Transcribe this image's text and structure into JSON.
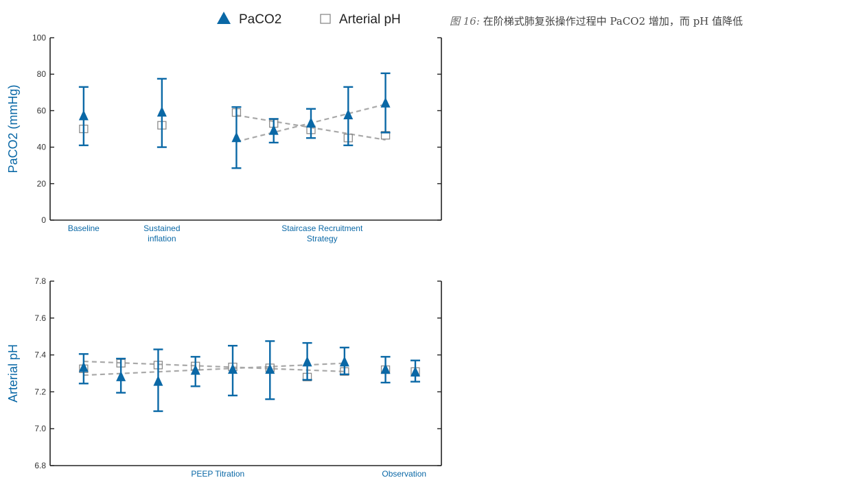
{
  "caption": {
    "prefix": "图  16:",
    "text": "在阶梯式肺复张操作过程中 PaCO2 增加，而 pH 值降低"
  },
  "legend": {
    "paco2": "PaCO2",
    "ph": "Arterial pH"
  },
  "colors": {
    "accent": "#0a68a6",
    "dashed": "#a8a8a8",
    "square": "#8a8a8a",
    "axis": "#222222"
  },
  "chart_data": [
    {
      "type": "scatter",
      "name": "paco2-chart",
      "ylabel": "PaCO2 (mmHg)",
      "ylim": [
        0,
        100
      ],
      "yticks": [
        0,
        20,
        40,
        60,
        80,
        100
      ],
      "xlim": [
        0,
        10.5
      ],
      "group_labels": [
        {
          "text": [
            "Baseline"
          ],
          "x": 0.9
        },
        {
          "text": [
            "Sustained",
            "inflation"
          ],
          "x": 3.0
        },
        {
          "text": [
            "Staircase Recruitment",
            "Strategy"
          ],
          "x": 7.3
        }
      ],
      "paco2": [
        {
          "x": 0.9,
          "y": 57,
          "lo": 41,
          "hi": 73
        },
        {
          "x": 3.0,
          "y": 59,
          "lo": 40,
          "hi": 77.5
        },
        {
          "x": 5.0,
          "y": 45,
          "lo": 28.5,
          "hi": 62
        },
        {
          "x": 6.0,
          "y": 49,
          "lo": 42.5,
          "hi": 55.5
        },
        {
          "x": 7.0,
          "y": 53,
          "lo": 45,
          "hi": 61
        },
        {
          "x": 8.0,
          "y": 57.5,
          "lo": 41,
          "hi": 73
        },
        {
          "x": 9.0,
          "y": 64,
          "lo": 48,
          "hi": 80.5
        }
      ],
      "ph": [
        {
          "x": 0.9,
          "y": 50
        },
        {
          "x": 3.0,
          "y": 52
        },
        {
          "x": 5.0,
          "y": 59
        },
        {
          "x": 6.0,
          "y": 53
        },
        {
          "x": 7.0,
          "y": 49.5
        },
        {
          "x": 8.0,
          "y": 45
        },
        {
          "x": 9.0,
          "y": 46.5
        }
      ],
      "dashed_paco2": [
        [
          5.0,
          43
        ],
        [
          9.0,
          63.5
        ]
      ],
      "dashed_ph": [
        [
          5.0,
          57.5
        ],
        [
          9.0,
          44
        ]
      ]
    },
    {
      "type": "scatter",
      "name": "ph-chart",
      "ylabel": "Arterial pH",
      "ylim": [
        6.8,
        7.8
      ],
      "yticks": [
        "6.8",
        "7.0",
        "7.2",
        "7.4",
        "7.6",
        "7.8"
      ],
      "xlim": [
        0,
        10.5
      ],
      "group_labels": [
        {
          "text": [
            "PEEP Titration"
          ],
          "x": 4.5
        },
        {
          "text": [
            "Observation"
          ],
          "x": 9.5
        }
      ],
      "paco2": [
        {
          "x": 0.9,
          "y": 7.33,
          "lo": 7.245,
          "hi": 7.405
        },
        {
          "x": 1.9,
          "y": 7.28,
          "lo": 7.195,
          "hi": 7.38
        },
        {
          "x": 2.9,
          "y": 7.255,
          "lo": 7.095,
          "hi": 7.43
        },
        {
          "x": 3.9,
          "y": 7.315,
          "lo": 7.23,
          "hi": 7.39
        },
        {
          "x": 4.9,
          "y": 7.32,
          "lo": 7.18,
          "hi": 7.45
        },
        {
          "x": 5.9,
          "y": 7.32,
          "lo": 7.16,
          "hi": 7.475
        },
        {
          "x": 6.9,
          "y": 7.36,
          "lo": 7.265,
          "hi": 7.465
        },
        {
          "x": 7.9,
          "y": 7.36,
          "lo": 7.295,
          "hi": 7.44
        },
        {
          "x": 9.0,
          "y": 7.32,
          "lo": 7.25,
          "hi": 7.39
        },
        {
          "x": 9.8,
          "y": 7.305,
          "lo": 7.255,
          "hi": 7.37
        }
      ],
      "ph": [
        {
          "x": 0.9,
          "y": 7.325
        },
        {
          "x": 1.9,
          "y": 7.355
        },
        {
          "x": 2.9,
          "y": 7.345
        },
        {
          "x": 3.9,
          "y": 7.34
        },
        {
          "x": 4.9,
          "y": 7.335
        },
        {
          "x": 5.9,
          "y": 7.33
        },
        {
          "x": 6.9,
          "y": 7.28
        },
        {
          "x": 7.9,
          "y": 7.31
        },
        {
          "x": 9.0,
          "y": 7.32
        },
        {
          "x": 9.8,
          "y": 7.31
        }
      ],
      "dashed_paco2": [
        [
          0.9,
          7.29
        ],
        [
          7.9,
          7.355
        ]
      ],
      "dashed_ph": [
        [
          0.9,
          7.365
        ],
        [
          7.9,
          7.31
        ]
      ]
    }
  ]
}
